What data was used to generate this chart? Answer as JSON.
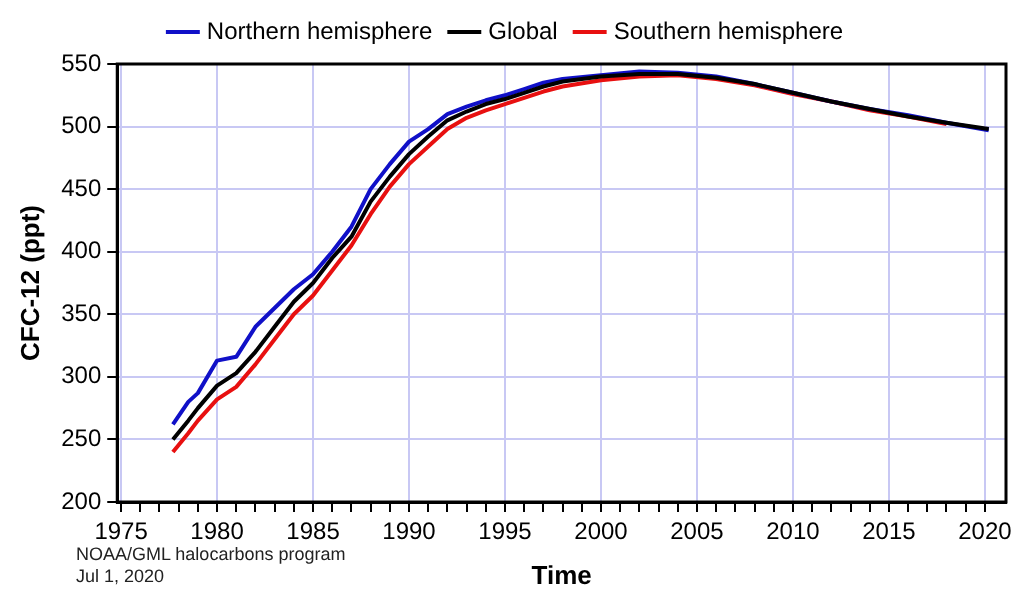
{
  "chart_data": {
    "type": "line",
    "xlabel": "Time",
    "ylabel": "CFC-12 (ppt)",
    "xlim": [
      1974.8,
      2021.1
    ],
    "ylim": [
      200,
      550
    ],
    "xticks": [
      1975,
      {
        "value": 1976,
        "label": null
      },
      {
        "value": 1977,
        "label": null
      },
      {
        "value": 1978,
        "label": null
      },
      {
        "value": 1979,
        "label": null
      },
      1980,
      {
        "value": 1981,
        "label": null
      },
      {
        "value": 1982,
        "label": null
      },
      {
        "value": 1983,
        "label": null
      },
      {
        "value": 1984,
        "label": null
      },
      1985,
      {
        "value": 1986,
        "label": null
      },
      {
        "value": 1987,
        "label": null
      },
      {
        "value": 1988,
        "label": null
      },
      {
        "value": 1989,
        "label": null
      },
      1990,
      {
        "value": 1991,
        "label": null
      },
      {
        "value": 1992,
        "label": null
      },
      {
        "value": 1993,
        "label": null
      },
      {
        "value": 1994,
        "label": null
      },
      1995,
      {
        "value": 1996,
        "label": null
      },
      {
        "value": 1997,
        "label": null
      },
      {
        "value": 1998,
        "label": null
      },
      {
        "value": 1999,
        "label": null
      },
      2000,
      {
        "value": 2001,
        "label": null
      },
      {
        "value": 2002,
        "label": null
      },
      {
        "value": 2003,
        "label": null
      },
      {
        "value": 2004,
        "label": null
      },
      2005,
      {
        "value": 2006,
        "label": null
      },
      {
        "value": 2007,
        "label": null
      },
      {
        "value": 2008,
        "label": null
      },
      {
        "value": 2009,
        "label": null
      },
      2010,
      {
        "value": 2011,
        "label": null
      },
      {
        "value": 2012,
        "label": null
      },
      {
        "value": 2013,
        "label": null
      },
      {
        "value": 2014,
        "label": null
      },
      2015,
      {
        "value": 2016,
        "label": null
      },
      {
        "value": 2017,
        "label": null
      },
      {
        "value": 2018,
        "label": null
      },
      {
        "value": 2019,
        "label": null
      },
      2020
    ],
    "yticks": [
      200,
      250,
      300,
      350,
      400,
      450,
      500,
      550
    ],
    "x": [
      1977.7,
      1978.5,
      1979,
      1980,
      1981,
      1982,
      1983,
      1984,
      1985,
      1986,
      1987,
      1988,
      1989,
      1990,
      1991,
      1992,
      1993,
      1994,
      1995,
      1996,
      1997,
      1998,
      2000,
      2002,
      2004,
      2006,
      2008,
      2010,
      2012,
      2014,
      2016,
      2018,
      2020.2
    ],
    "series": [
      {
        "name": "Northern hemisphere",
        "color": "#1010c8",
        "values": [
          262,
          280,
          287,
          313,
          316,
          340,
          355,
          370,
          382,
          400,
          420,
          450,
          470,
          488,
          498,
          510,
          516,
          521,
          525,
          530,
          535,
          538,
          541,
          544,
          543,
          540,
          534,
          527,
          520,
          514,
          509,
          503,
          497
        ]
      },
      {
        "name": "Global",
        "color": "#000000",
        "values": [
          250,
          265,
          275,
          293,
          303,
          320,
          340,
          360,
          375,
          395,
          412,
          440,
          460,
          478,
          492,
          505,
          512,
          518,
          522,
          527,
          532,
          536,
          540,
          542,
          542,
          539,
          534,
          527,
          520,
          514,
          508,
          503,
          498
        ]
      },
      {
        "name": "Southern hemisphere",
        "color": "#e81010",
        "values": [
          240,
          255,
          265,
          282,
          292,
          310,
          330,
          350,
          365,
          385,
          405,
          430,
          452,
          470,
          484,
          498,
          507,
          513,
          518,
          523,
          528,
          532,
          537,
          540,
          541,
          538,
          533,
          526,
          520,
          513,
          508,
          502,
          null
        ]
      }
    ],
    "grid": true,
    "legend": "top",
    "marker": "none",
    "line_style": "solid",
    "annotations": [
      "NOAA/GML halocarbons program",
      "Jul 1, 2020"
    ]
  }
}
